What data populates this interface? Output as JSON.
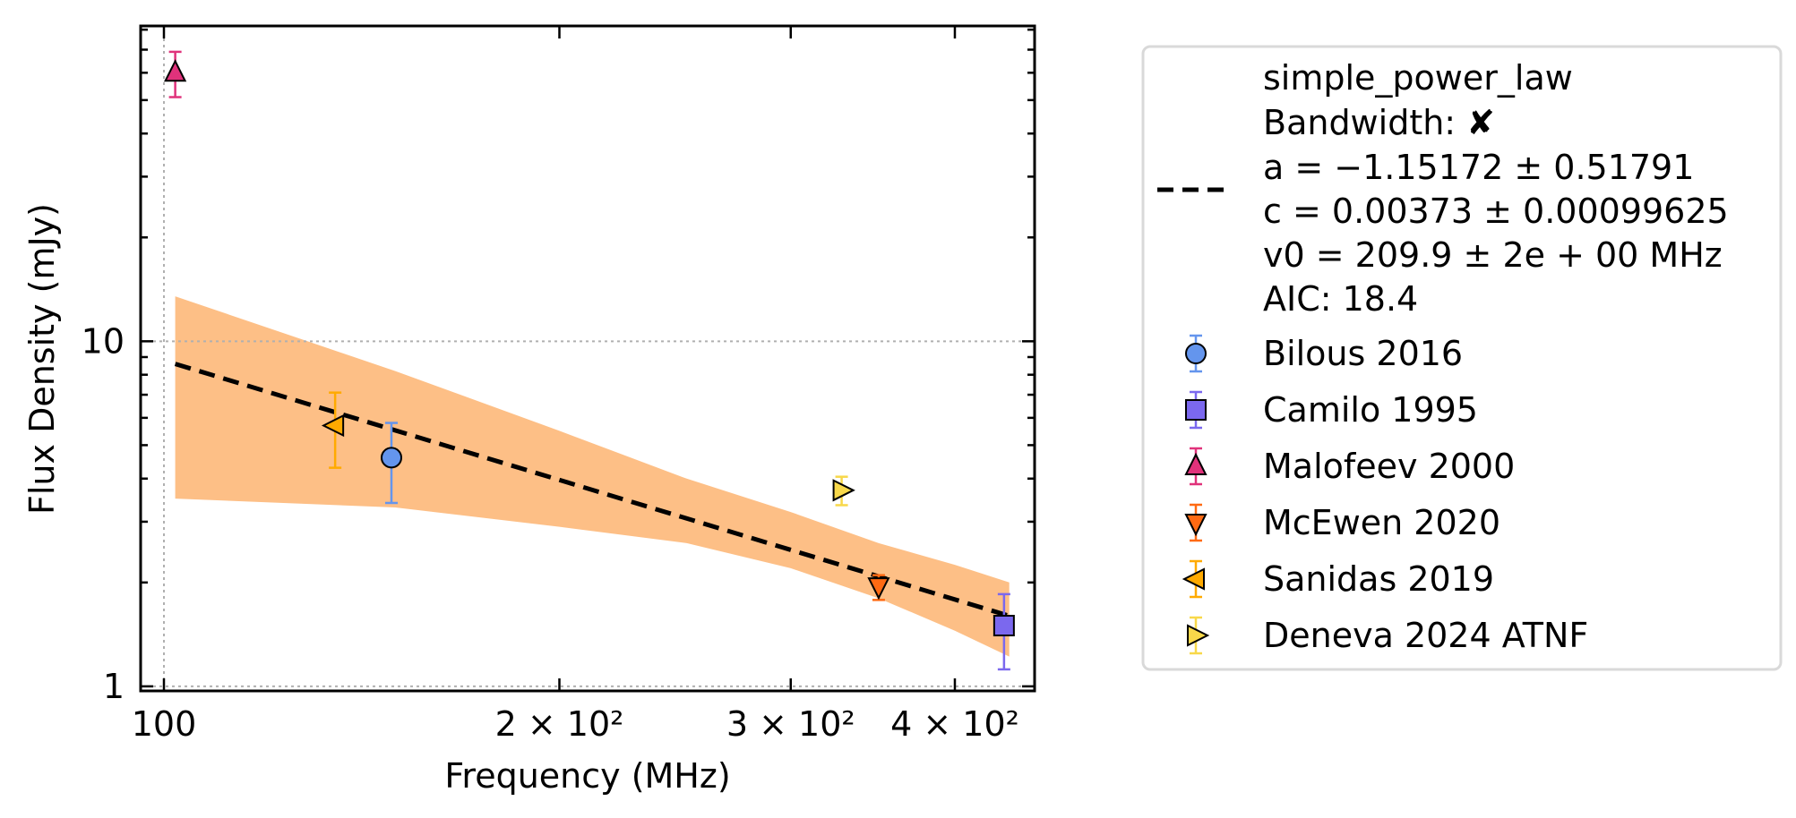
{
  "chart_data": {
    "type": "scatter",
    "title": "",
    "xlabel": "Frequency (MHz)",
    "ylabel": "Flux Density (mJy)",
    "xscale": "log",
    "yscale": "log",
    "xlim": [
      96,
      460
    ],
    "ylim": [
      0.97,
      82
    ],
    "grid": true,
    "legend_position": "outside-right",
    "x_ticks": [
      {
        "value": 100,
        "label": "100"
      },
      {
        "value": 200,
        "label": "2 × 10²"
      },
      {
        "value": 300,
        "label": "3 × 10²"
      },
      {
        "value": 400,
        "label": "4 × 10²"
      }
    ],
    "y_ticks": [
      {
        "value": 1,
        "label": "1"
      },
      {
        "value": 10,
        "label": "10"
      }
    ],
    "fit": {
      "model_label": "simple_power_law",
      "bandwidth_label": "Bandwidth: ✘",
      "a_label": "a = −1.15172 ± 0.51791",
      "c_label": "c = 0.00373 ± 0.00099625",
      "v0_label": "v0 = 209.9 ± 2e + 00 MHz",
      "aic_label": "AIC: 18.4",
      "x_start": 102,
      "x_end": 440,
      "y_start": 8.6,
      "y_end": 1.6,
      "band": [
        {
          "x": 102,
          "low": 3.5,
          "high": 13.5
        },
        {
          "x": 150,
          "low": 3.3,
          "high": 8.2
        },
        {
          "x": 200,
          "low": 2.9,
          "high": 5.5
        },
        {
          "x": 250,
          "low": 2.6,
          "high": 4.0
        },
        {
          "x": 300,
          "low": 2.2,
          "high": 3.2
        },
        {
          "x": 350,
          "low": 1.8,
          "high": 2.6
        },
        {
          "x": 400,
          "low": 1.45,
          "high": 2.25
        },
        {
          "x": 440,
          "low": 1.22,
          "high": 2.0
        }
      ],
      "line_color": "#000000",
      "band_color": "#fdbf86"
    },
    "series": [
      {
        "name": "Bilous 2016",
        "marker": "circle",
        "color": "#6495ed",
        "points": [
          {
            "x": 149,
            "y": 4.6,
            "yerr_low": 3.4,
            "yerr_high": 5.8
          }
        ]
      },
      {
        "name": "Camilo 1995",
        "marker": "square",
        "color": "#7b68ee",
        "points": [
          {
            "x": 436,
            "y": 1.5,
            "yerr_low": 1.12,
            "yerr_high": 1.85
          }
        ]
      },
      {
        "name": "Malofeev 2000",
        "marker": "triangle-up",
        "color": "#e0327b",
        "points": [
          {
            "x": 102,
            "y": 60,
            "yerr_low": 51,
            "yerr_high": 69
          }
        ]
      },
      {
        "name": "McEwen 2020",
        "marker": "triangle-down",
        "color": "#ff6a13",
        "points": [
          {
            "x": 350,
            "y": 1.95,
            "yerr_low": 1.78,
            "yerr_high": 2.1
          }
        ]
      },
      {
        "name": "Sanidas 2019",
        "marker": "triangle-left",
        "color": "#ffaa00",
        "points": [
          {
            "x": 135,
            "y": 5.7,
            "yerr_low": 4.3,
            "yerr_high": 7.1
          }
        ]
      },
      {
        "name": "Deneva 2024 ATNF",
        "marker": "triangle-right",
        "color": "#f8d84a",
        "points": [
          {
            "x": 328,
            "y": 3.7,
            "yerr_low": 3.35,
            "yerr_high": 4.05
          }
        ]
      }
    ]
  }
}
